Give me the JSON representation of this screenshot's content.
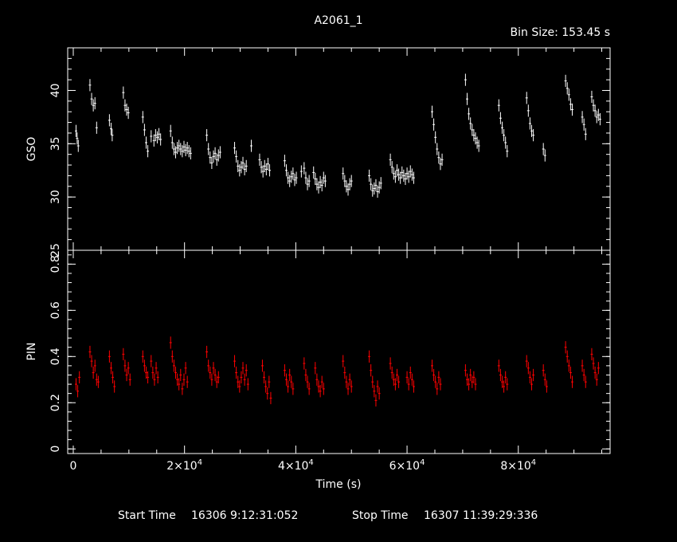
{
  "chart_data": [
    {
      "type": "line",
      "panel": "top",
      "title": "A2061_1",
      "annotation": "Bin Size: 153.45 s",
      "ylabel": "GSO",
      "ylim": [
        25,
        44
      ],
      "yticks": [
        25,
        30,
        35,
        40
      ],
      "yticklabels": [
        "25",
        "30",
        "35",
        "40"
      ],
      "xlim": [
        -1000,
        96500
      ],
      "grid": false,
      "color": "#ffffff",
      "series": [
        {
          "x": [
            500,
            700,
            900,
            3000,
            3300,
            3600,
            3900,
            4200,
            6500,
            6800,
            7000,
            9000,
            9300,
            9600,
            9900,
            12500,
            12800,
            13100,
            13400,
            14000,
            14500,
            14800,
            15100,
            15400,
            15700,
            17500,
            17800,
            18100,
            18400,
            18700,
            19000,
            19300,
            19600,
            19900,
            20200,
            20500,
            20800,
            21100,
            24000,
            24300,
            24600,
            24900,
            25200,
            25500,
            25800,
            26100,
            26400,
            29000,
            29300,
            29600,
            29900,
            30200,
            30500,
            30800,
            31100,
            32000,
            33500,
            33800,
            34100,
            34400,
            34700,
            35000,
            35300,
            38000,
            38300,
            38600,
            38900,
            39200,
            39500,
            39800,
            40100,
            41000,
            41500,
            41800,
            42100,
            42400,
            43200,
            43500,
            43800,
            44100,
            44400,
            44700,
            45000,
            45300,
            48500,
            48800,
            49100,
            49400,
            49700,
            50000,
            53200,
            53500,
            53800,
            54100,
            54400,
            54700,
            55000,
            55300,
            57000,
            57300,
            57600,
            57900,
            58200,
            58500,
            58800,
            59100,
            59400,
            59700,
            60000,
            60300,
            60600,
            60900,
            61200,
            64500,
            64800,
            65100,
            65400,
            65700,
            66000,
            66300,
            70500,
            70800,
            71100,
            71400,
            71700,
            72000,
            72300,
            72600,
            72900,
            76500,
            76800,
            77100,
            77400,
            77700,
            78000,
            81500,
            81800,
            82100,
            82400,
            82700,
            84500,
            84800,
            88500,
            88800,
            89100,
            89400,
            89700,
            91500,
            91800,
            92100,
            93200,
            93500,
            93800,
            94100,
            94400,
            94700
          ],
          "values": [
            36.2,
            35.5,
            34.8,
            40.5,
            39.2,
            38.6,
            38.8,
            36.5,
            37.2,
            36.4,
            35.8,
            39.8,
            38.6,
            38.2,
            37.9,
            37.5,
            36.3,
            35.1,
            34.3,
            35.7,
            35.3,
            35.8,
            35.6,
            35.9,
            35.4,
            36.2,
            35.1,
            34.5,
            34.2,
            34.6,
            34.8,
            34.5,
            34.3,
            34.7,
            34.4,
            34.6,
            34.3,
            34.1,
            35.8,
            34.5,
            33.7,
            33.2,
            33.8,
            34.1,
            33.5,
            33.9,
            34.2,
            34.6,
            33.8,
            32.9,
            32.5,
            32.8,
            33.2,
            32.6,
            32.9,
            34.8,
            33.5,
            32.8,
            32.4,
            32.9,
            32.6,
            33.1,
            32.5,
            33.4,
            32.5,
            31.8,
            31.5,
            31.9,
            32.2,
            31.6,
            31.8,
            32.4,
            32.7,
            31.8,
            31.2,
            31.5,
            32.3,
            31.7,
            31.2,
            30.9,
            31.4,
            31.1,
            31.8,
            31.5,
            32.2,
            31.5,
            31.0,
            30.7,
            31.2,
            31.5,
            32.0,
            31.2,
            30.6,
            30.8,
            31.1,
            30.5,
            30.9,
            31.3,
            33.5,
            32.8,
            32.2,
            31.9,
            32.5,
            32.1,
            31.8,
            32.3,
            32.0,
            31.7,
            32.2,
            31.9,
            32.4,
            32.1,
            31.8,
            38.0,
            36.8,
            35.6,
            34.5,
            33.7,
            33.1,
            33.5,
            41.0,
            39.2,
            37.8,
            36.9,
            36.3,
            35.8,
            35.5,
            35.1,
            34.8,
            38.6,
            37.4,
            36.5,
            35.8,
            35.1,
            34.3,
            39.3,
            38.1,
            36.9,
            36.2,
            35.8,
            34.5,
            33.9,
            40.9,
            40.2,
            39.6,
            38.7,
            38.2,
            37.5,
            36.8,
            35.9,
            39.4,
            38.6,
            38.1,
            37.5,
            37.7,
            37.3
          ]
        }
      ]
    },
    {
      "type": "line",
      "panel": "bottom",
      "ylabel": "PIN",
      "xlabel": "Time (s)",
      "ylim": [
        -0.02,
        0.86
      ],
      "yticks": [
        0,
        0.2,
        0.4,
        0.6,
        0.8
      ],
      "yticklabels": [
        "0",
        "0.2",
        "0.4",
        "0.6",
        "0.8"
      ],
      "xlim": [
        -1000,
        96500
      ],
      "xticks": [
        0,
        20000,
        40000,
        60000,
        80000
      ],
      "xticklabels": [
        {
          "base": "0",
          "exp": ""
        },
        {
          "base": "2×10",
          "exp": "4"
        },
        {
          "base": "4×10",
          "exp": "4"
        },
        {
          "base": "6×10",
          "exp": "4"
        },
        {
          "base": "8×10",
          "exp": "4"
        }
      ],
      "grid": false,
      "color": "#ff0000",
      "series": [
        {
          "x": [
            500,
            800,
            1100,
            3000,
            3300,
            3600,
            3900,
            4200,
            4500,
            6500,
            6800,
            7100,
            7400,
            9000,
            9300,
            9600,
            9900,
            10200,
            12500,
            12800,
            13100,
            13400,
            14000,
            14300,
            14600,
            14900,
            15200,
            17500,
            17800,
            18100,
            18400,
            18700,
            19000,
            19300,
            19600,
            19900,
            20200,
            20500,
            24000,
            24300,
            24600,
            24900,
            25200,
            25500,
            25800,
            26100,
            29000,
            29300,
            29600,
            29900,
            30200,
            30500,
            30800,
            31100,
            31400,
            34000,
            34300,
            34600,
            34900,
            35200,
            35500,
            38000,
            38300,
            38600,
            38900,
            39200,
            39500,
            41500,
            41800,
            42100,
            42400,
            43500,
            43800,
            44100,
            44400,
            44700,
            45000,
            48500,
            48800,
            49100,
            49400,
            49700,
            50000,
            53200,
            53500,
            53800,
            54100,
            54400,
            54700,
            55000,
            57000,
            57300,
            57600,
            57900,
            58200,
            58500,
            60000,
            60300,
            60600,
            60900,
            61200,
            64500,
            64800,
            65100,
            65400,
            65700,
            66000,
            70500,
            70800,
            71100,
            71400,
            71700,
            72000,
            72300,
            76500,
            76800,
            77100,
            77400,
            77700,
            78000,
            81500,
            81800,
            82100,
            82400,
            82700,
            84500,
            84800,
            85100,
            88500,
            88800,
            89100,
            89400,
            89700,
            91500,
            91800,
            92100,
            93200,
            93500,
            93800,
            94100,
            94400
          ],
          "values": [
            0.28,
            0.25,
            0.31,
            0.42,
            0.38,
            0.33,
            0.36,
            0.3,
            0.29,
            0.4,
            0.35,
            0.31,
            0.27,
            0.41,
            0.36,
            0.32,
            0.35,
            0.3,
            0.4,
            0.36,
            0.33,
            0.31,
            0.38,
            0.33,
            0.3,
            0.35,
            0.31,
            0.46,
            0.4,
            0.36,
            0.33,
            0.3,
            0.28,
            0.32,
            0.26,
            0.3,
            0.35,
            0.29,
            0.42,
            0.36,
            0.33,
            0.3,
            0.35,
            0.32,
            0.29,
            0.31,
            0.38,
            0.33,
            0.29,
            0.27,
            0.31,
            0.35,
            0.3,
            0.34,
            0.28,
            0.36,
            0.31,
            0.27,
            0.24,
            0.29,
            0.22,
            0.34,
            0.3,
            0.27,
            0.32,
            0.29,
            0.26,
            0.37,
            0.32,
            0.29,
            0.26,
            0.35,
            0.3,
            0.27,
            0.25,
            0.29,
            0.26,
            0.38,
            0.33,
            0.29,
            0.26,
            0.3,
            0.27,
            0.4,
            0.34,
            0.29,
            0.25,
            0.21,
            0.27,
            0.24,
            0.37,
            0.33,
            0.3,
            0.28,
            0.32,
            0.29,
            0.31,
            0.28,
            0.33,
            0.3,
            0.27,
            0.36,
            0.32,
            0.29,
            0.26,
            0.31,
            0.28,
            0.34,
            0.3,
            0.28,
            0.32,
            0.29,
            0.31,
            0.28,
            0.36,
            0.32,
            0.29,
            0.27,
            0.31,
            0.28,
            0.38,
            0.35,
            0.31,
            0.28,
            0.32,
            0.34,
            0.3,
            0.27,
            0.44,
            0.4,
            0.36,
            0.33,
            0.29,
            0.36,
            0.32,
            0.29,
            0.41,
            0.37,
            0.33,
            0.3,
            0.35
          ]
        }
      ]
    }
  ],
  "footer": {
    "start_label": "Start Time",
    "start_value": "16306  9:12:31:052",
    "stop_label": "Stop Time",
    "stop_value": "16307 11:39:29:336"
  }
}
